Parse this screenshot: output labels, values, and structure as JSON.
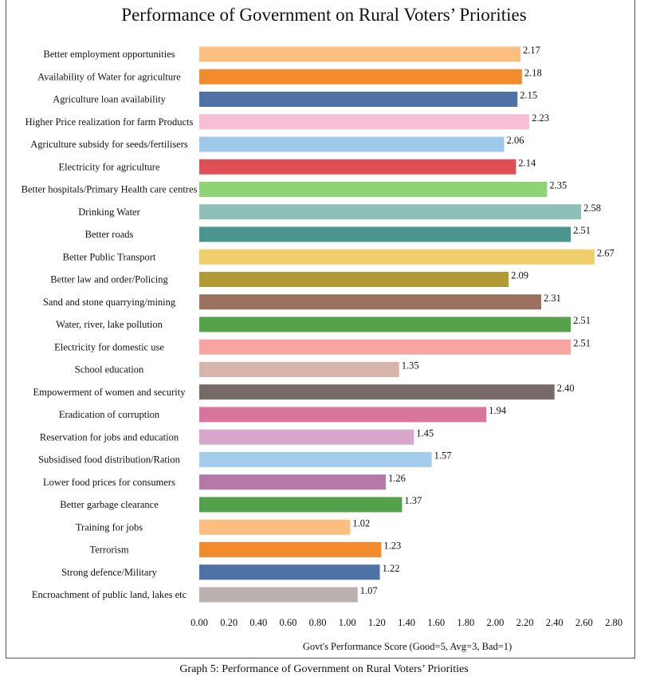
{
  "caption": "Graph 5: Performance of Government on Rural Voters’ Priorities",
  "chart_data": {
    "type": "bar",
    "orientation": "horizontal",
    "title": "Performance of Government on Rural Voters’ Priorities",
    "xlabel": "Govt's Performance Score (Good=5, Avg=3, Bad=1)",
    "ylabel": "",
    "xlim": [
      0,
      2.8
    ],
    "xticks": [
      "0.00",
      "0.20",
      "0.40",
      "0.60",
      "0.80",
      "1.00",
      "1.20",
      "1.40",
      "1.60",
      "1.80",
      "2.00",
      "2.20",
      "2.40",
      "2.60",
      "2.80"
    ],
    "grid": false,
    "legend": "none",
    "categories": [
      "Better employment opportunities",
      "Availability of Water for agriculture",
      "Agriculture loan availability",
      "Higher Price realization for farm Products",
      "Agriculture subsidy for seeds/fertilisers",
      "Electricity for agriculture",
      "Better hospitals/Primary Health care centres",
      "Drinking Water",
      "Better roads",
      "Better Public Transport",
      "Better law and order/Policing",
      "Sand and stone quarrying/mining",
      "Water, river, lake pollution",
      "Electricity for domestic use",
      "School education",
      "Empowerment of women and security",
      "Eradication of corruption",
      "Reservation for jobs and education",
      "Subsidised food distribution/Ration",
      "Lower food prices for consumers",
      "Better garbage clearance",
      "Training for jobs",
      "Terrorism",
      "Strong defence/Military",
      "Encroachment of public land, lakes etc"
    ],
    "values": [
      2.17,
      2.18,
      2.15,
      2.23,
      2.06,
      2.14,
      2.35,
      2.58,
      2.51,
      2.67,
      2.09,
      2.31,
      2.51,
      2.51,
      1.35,
      2.4,
      1.94,
      1.45,
      1.57,
      1.26,
      1.37,
      1.02,
      1.23,
      1.22,
      1.07
    ],
    "value_labels": [
      "2.17",
      "2.18",
      "2.15",
      "2.23",
      "2.06",
      "2.14",
      "2.35",
      "2.58",
      "2.51",
      "2.67",
      "2.09",
      "2.31",
      "2.51",
      "2.51",
      "1.35",
      "2.40",
      "1.94",
      "1.45",
      "1.57",
      "1.26",
      "1.37",
      "1.02",
      "1.23",
      "1.22",
      "1.07"
    ],
    "colors": [
      "#FDBF7F",
      "#F28B2E",
      "#4E72A6",
      "#F8BED6",
      "#9FC9E8",
      "#DE5055",
      "#8ED474",
      "#8FC0B7",
      "#4A958F",
      "#F0CF6A",
      "#B29A37",
      "#9C725F",
      "#55A24A",
      "#F8A4A1",
      "#D8B5AA",
      "#766A68",
      "#D9759D",
      "#D6A7CA",
      "#A3CDEB",
      "#B27AA4",
      "#53A24B",
      "#FDBF7F",
      "#F28B2E",
      "#4E72A6",
      "#BAB0AD"
    ]
  }
}
